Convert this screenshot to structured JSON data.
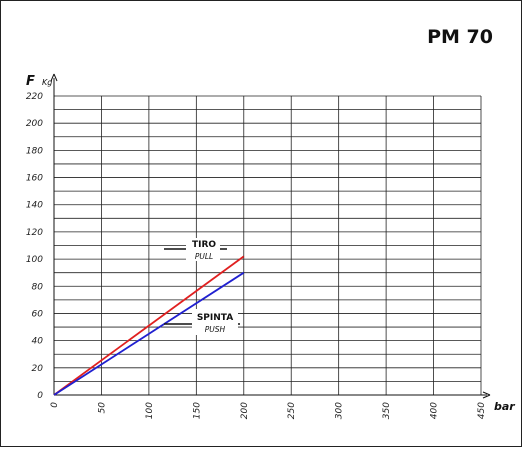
{
  "chart_data": {
    "type": "line",
    "title": "PM 70",
    "ylabel": {
      "symbol": "F",
      "unit": "Kg"
    },
    "xlabel": "bar",
    "xlim": [
      0,
      450
    ],
    "ylim": [
      0,
      220
    ],
    "x_ticks": [
      0,
      50,
      100,
      150,
      200,
      250,
      300,
      350,
      400,
      450
    ],
    "y_ticks": [
      0,
      20,
      40,
      60,
      80,
      100,
      120,
      140,
      160,
      180,
      200,
      220
    ],
    "grid": true,
    "series": [
      {
        "name": "TIRO",
        "subname": "PULL",
        "color": "#e02020",
        "x": [
          0,
          200
        ],
        "y": [
          0,
          102
        ]
      },
      {
        "name": "SPINTA",
        "subname": "PUSH",
        "color": "#2020d0",
        "x": [
          0,
          200
        ],
        "y": [
          0,
          90
        ]
      }
    ]
  }
}
